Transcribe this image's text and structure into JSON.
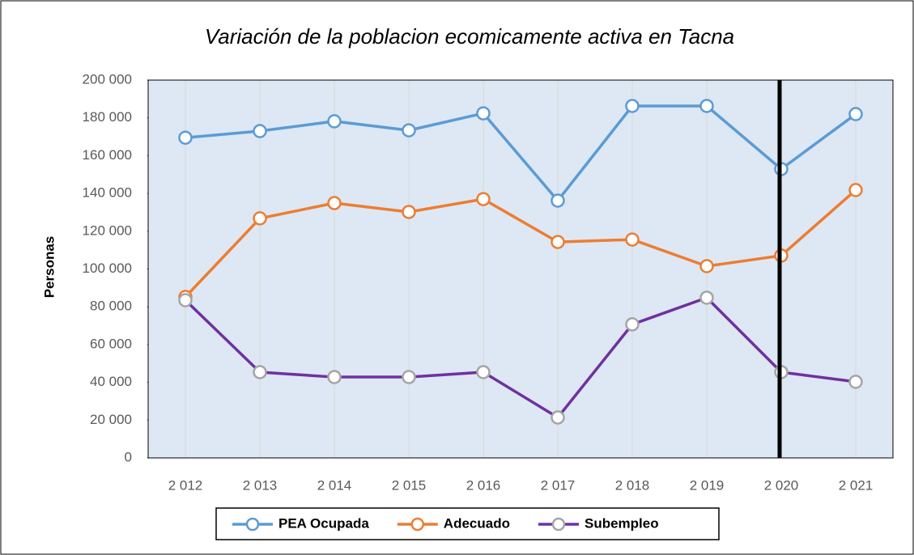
{
  "chart_data": {
    "type": "line",
    "title": "Variación de la poblacion ecomicamente activa en Tacna",
    "y_label": "Personas",
    "categories": [
      "2 012",
      "2 013",
      "2 014",
      "2 015",
      "2 016",
      "2 017",
      "2 018",
      "2 019",
      "2 020",
      "2 021"
    ],
    "series": [
      {
        "name": "PEA Ocupada",
        "color": "#5b9bd5",
        "marker_color": "#5b9bd5",
        "values": [
          169500,
          173000,
          178200,
          173400,
          182400,
          136200,
          186300,
          186300,
          152900,
          182000
        ]
      },
      {
        "name": "Adecuado",
        "color": "#ed7d31",
        "marker_color": "#ed7d31",
        "values": [
          85200,
          126800,
          134900,
          130200,
          137000,
          114300,
          115600,
          101500,
          107100,
          141800
        ]
      },
      {
        "name": "Subempleo",
        "color": "#7030a0",
        "marker_color": "#a5a5a5",
        "values": [
          83500,
          45400,
          42800,
          42800,
          45400,
          21400,
          70700,
          84800,
          45400,
          40300
        ]
      }
    ],
    "ylim": [
      0,
      200000
    ],
    "yticks": [
      0,
      {
        "value": 20000,
        "label": "20 000"
      },
      {
        "value": 40000,
        "label": "40 000"
      },
      {
        "value": 60000,
        "label": "60 000"
      },
      {
        "value": 80000,
        "label": "80 000"
      },
      {
        "value": 100000,
        "label": "100 000"
      },
      {
        "value": 120000,
        "label": "120 000"
      },
      {
        "value": 140000,
        "label": "140 000"
      },
      {
        "value": 160000,
        "label": "160 000"
      },
      {
        "value": 180000,
        "label": "180 000"
      },
      {
        "value": 200000,
        "label": "200 000"
      }
    ],
    "grid": true,
    "legend": "bottom"
  }
}
